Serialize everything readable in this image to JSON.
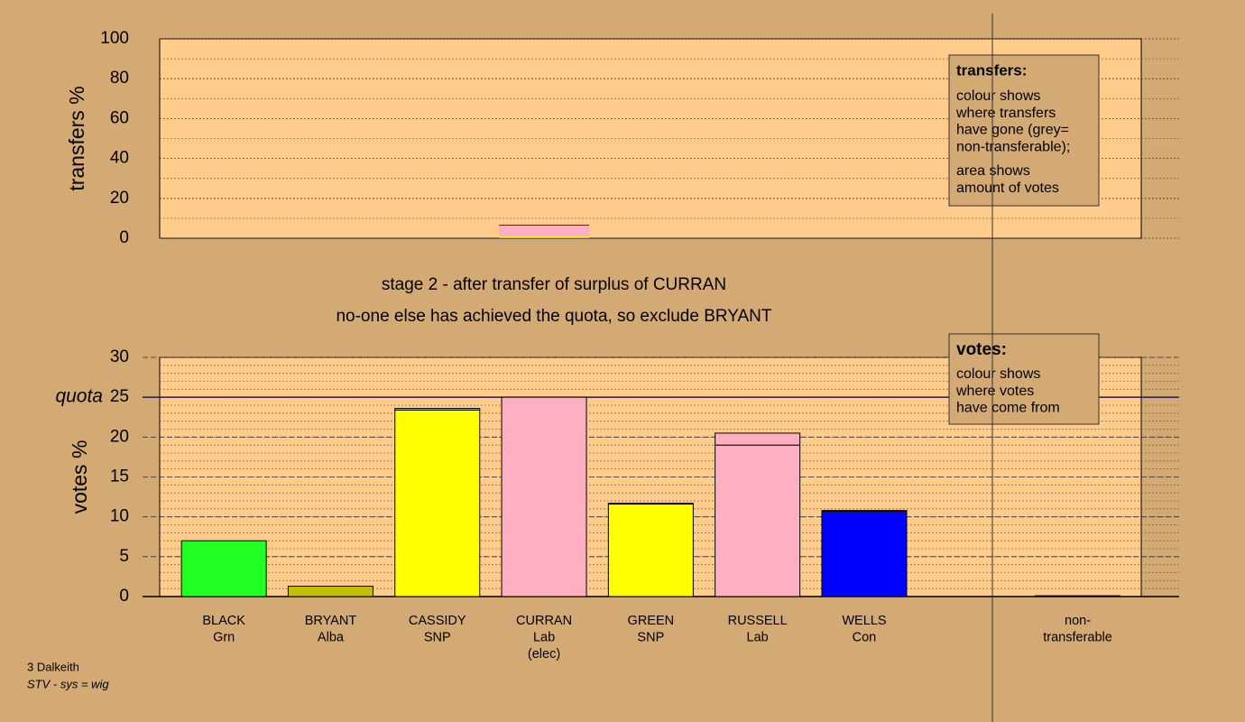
{
  "footer": {
    "line1": "3 Dalkeith",
    "line2": "STV - sys = wig"
  },
  "titles": [
    "stage 2 - after transfer of surplus of CURRAN",
    "no-one else has achieved the quota, so exclude BRYANT"
  ],
  "chart_data": [
    {
      "type": "stacked-bar",
      "ylabel": "transfers %",
      "ylim": [
        0,
        100
      ],
      "yticks": [
        0,
        20,
        40,
        60,
        80,
        100
      ],
      "grid": true,
      "segments": [
        {
          "value": 0.4,
          "color": "#22ff22"
        },
        {
          "value": 0.4,
          "color": "#ffff00"
        },
        {
          "value": 5.6,
          "color": "#ffb0c0"
        },
        {
          "value": 0.4,
          "color": "#0000ff"
        }
      ],
      "legend": {
        "title": "transfers:",
        "lines": [
          "colour shows",
          "where transfers",
          "have gone (grey=",
          "non-transferable);"
        ],
        "lines2": [
          "area shows",
          "amount of votes"
        ]
      }
    },
    {
      "type": "bar",
      "ylabel": "votes %",
      "ylim": [
        0,
        30
      ],
      "yticks": [
        0,
        5,
        10,
        15,
        20,
        25,
        30
      ],
      "grid": true,
      "quota": 25,
      "quota_label": "quota",
      "categories": [
        [
          "BLACK",
          "Grn"
        ],
        [
          "BRYANT",
          "Alba"
        ],
        [
          "CASSIDY",
          "SNP"
        ],
        [
          "CURRAN",
          "Lab",
          "(elec)"
        ],
        [
          "GREEN",
          "SNP"
        ],
        [
          "RUSSELL",
          "Lab"
        ],
        [
          "WELLS",
          "Con"
        ],
        null,
        [
          "non-",
          "transferable"
        ]
      ],
      "series": [
        {
          "values": [
            7.0,
            1.3,
            23.4,
            25.0,
            11.6,
            19.0,
            10.7,
            null,
            0.0
          ],
          "colors": [
            "#22ff22",
            "#c0c000",
            "#ffff00",
            "#ffb0c0",
            "#ffff00",
            "#ffb0c0",
            "#0000ff",
            null,
            "#888888"
          ]
        },
        {
          "values": [
            0.0,
            0.0,
            0.2,
            0.0,
            0.1,
            1.5,
            0.1,
            null,
            0.1
          ],
          "colors": [
            "#22ff22",
            "#c0c000",
            "#ffb0c0",
            "#ffb0c0",
            "#ffb0c0",
            "#ffb0c0",
            "#ffb0c0",
            null,
            "#888888"
          ]
        }
      ],
      "legend": {
        "title": "votes:",
        "lines": [
          "colour shows",
          "where votes",
          "have come from"
        ]
      }
    }
  ]
}
